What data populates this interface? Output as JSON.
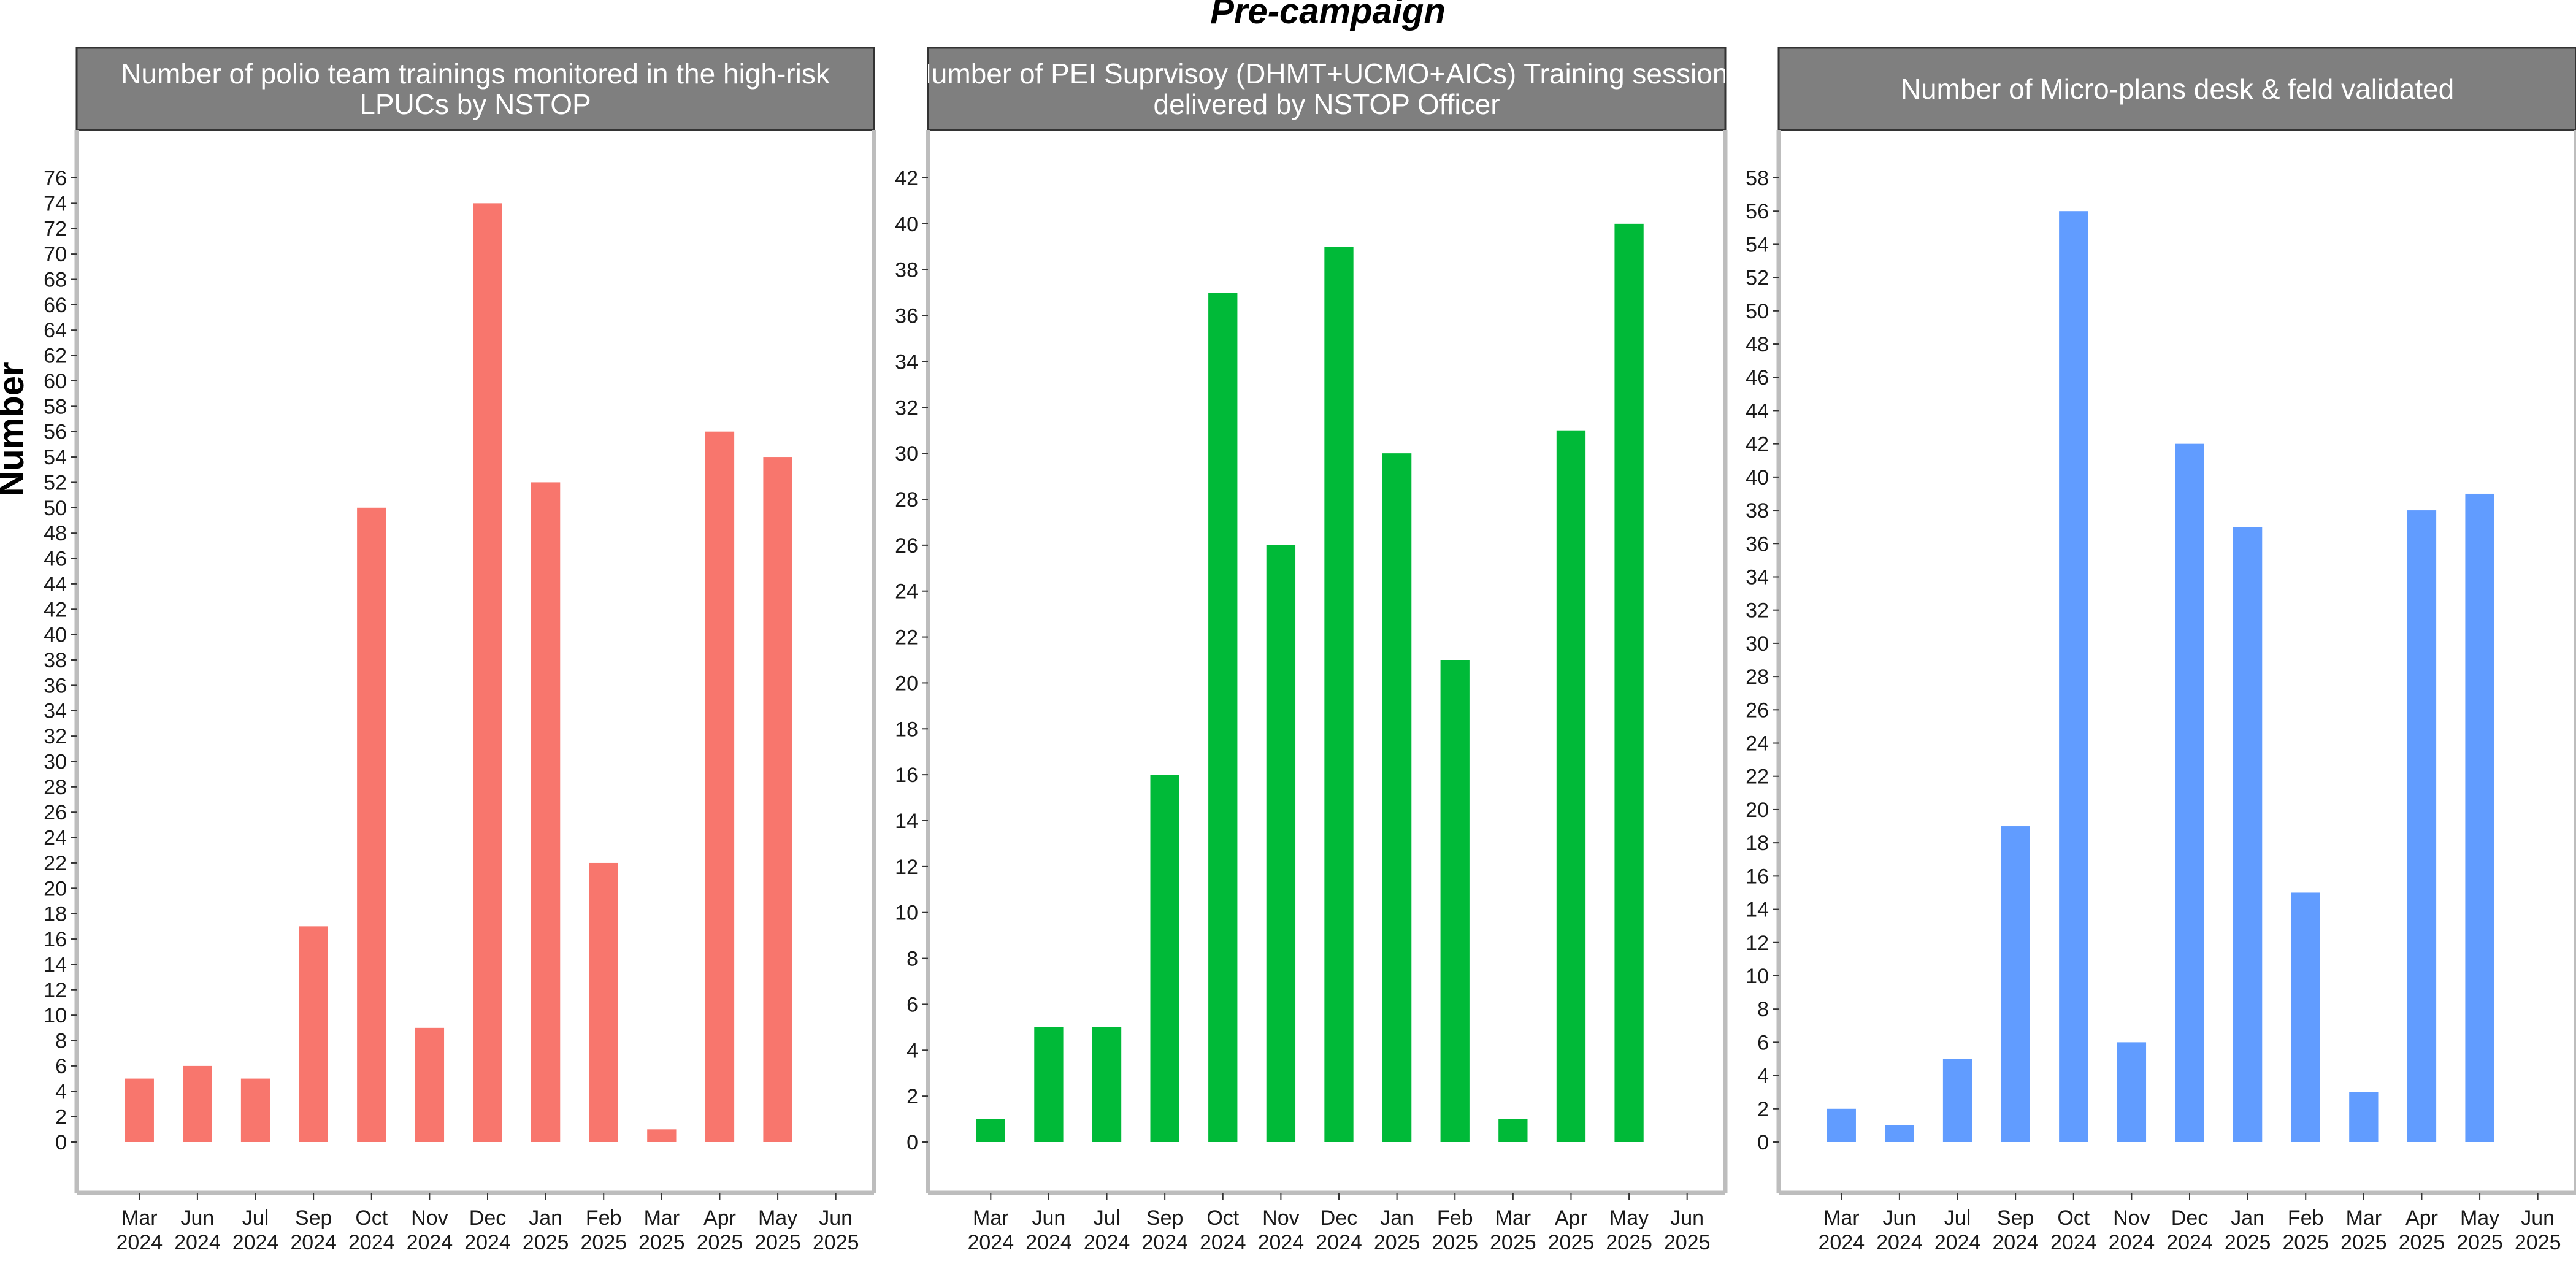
{
  "title": "Pre-campaign",
  "ylabel": "Number",
  "chart_data": [
    {
      "type": "bar",
      "title": [
        "Number of polio team trainings monitored in the high-risk",
        "LPUCs by NSTOP"
      ],
      "categories": [
        "Mar 2024",
        "Jun 2024",
        "Jul 2024",
        "Sep 2024",
        "Oct 2024",
        "Nov 2024",
        "Dec 2024",
        "Jan 2025",
        "Feb 2025",
        "Mar 2025",
        "Apr 2025",
        "May 2025",
        "Jun 2025"
      ],
      "values": [
        5,
        6,
        5,
        17,
        50,
        9,
        74,
        52,
        22,
        1,
        56,
        54,
        null
      ],
      "ylabel": "Number",
      "ylim": [
        0,
        78
      ],
      "ytick_step": 2,
      "ytick_max": 76,
      "color": "#F8766D",
      "grid": false,
      "legend": "none"
    },
    {
      "type": "bar",
      "title": [
        "Number of PEI Suprvisoy (DHMT+UCMO+AICs) Training sessions",
        "delivered by NSTOP Officer"
      ],
      "categories": [
        "Mar 2024",
        "Jun 2024",
        "Jul 2024",
        "Sep 2024",
        "Oct 2024",
        "Nov 2024",
        "Dec 2024",
        "Jan 2025",
        "Feb 2025",
        "Mar 2025",
        "Apr 2025",
        "May 2025",
        "Jun 2025"
      ],
      "values": [
        1,
        5,
        5,
        16,
        37,
        26,
        39,
        30,
        21,
        1,
        31,
        40,
        null
      ],
      "ylabel": "Number",
      "ylim": [
        0,
        42
      ],
      "ytick_step": 2,
      "ytick_max": 42,
      "color": "#00BA38",
      "grid": false,
      "legend": "none"
    },
    {
      "type": "bar",
      "title": [
        "Number of Micro-plans desk & feld validated"
      ],
      "categories": [
        "Mar 2024",
        "Jun 2024",
        "Jul 2024",
        "Sep 2024",
        "Oct 2024",
        "Nov 2024",
        "Dec 2024",
        "Jan 2025",
        "Feb 2025",
        "Mar 2025",
        "Apr 2025",
        "May 2025",
        "Jun 2025"
      ],
      "values": [
        2,
        1,
        5,
        19,
        56,
        6,
        42,
        37,
        15,
        3,
        38,
        39,
        null
      ],
      "ylabel": "Number",
      "ylim": [
        0,
        58
      ],
      "ytick_step": 2,
      "ytick_max": 58,
      "color": "#619CFF",
      "grid": false,
      "legend": "none"
    }
  ]
}
